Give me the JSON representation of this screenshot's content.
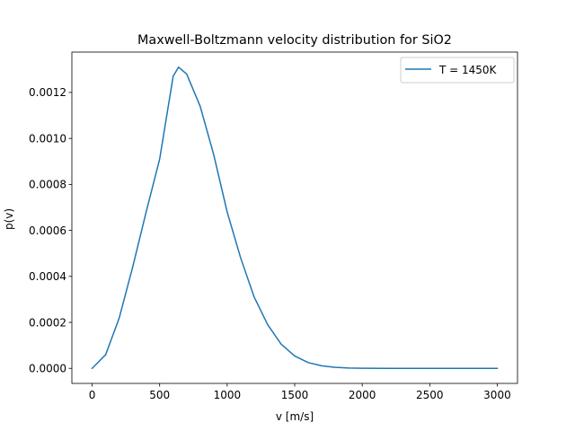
{
  "chart_data": {
    "type": "line",
    "title": "Maxwell-Boltzmann velocity distribution for SiO2",
    "xlabel": "v [m/s]",
    "ylabel": "p(v)",
    "xlim": [
      -150,
      3150
    ],
    "ylim": [
      -6.55e-05,
      0.0013755
    ],
    "x_ticks": [
      0,
      500,
      1000,
      1500,
      2000,
      2500,
      3000
    ],
    "x_tick_labels": [
      "0",
      "500",
      "1000",
      "1500",
      "2000",
      "2500",
      "3000"
    ],
    "y_ticks": [
      0,
      0.0002,
      0.0004,
      0.0006,
      0.0008,
      0.001,
      0.0012
    ],
    "y_tick_labels": [
      "0.0000",
      "0.0002",
      "0.0004",
      "0.0006",
      "0.0008",
      "0.0010",
      "0.0012"
    ],
    "grid": false,
    "legend_position": "top-right",
    "series": [
      {
        "name": "T = 1450K",
        "color": "#1f77b4",
        "x": [
          0,
          100,
          200,
          300,
          400,
          500,
          600,
          640,
          700,
          800,
          900,
          1000,
          1100,
          1200,
          1300,
          1400,
          1500,
          1600,
          1700,
          1800,
          1900,
          2000,
          2200,
          2400,
          2600,
          2800,
          3000
        ],
        "y": [
          0,
          5.92e-05,
          0.000218,
          0.00044,
          0.00068,
          0.00091,
          0.00127,
          0.00131,
          0.00128,
          0.00114,
          0.00093,
          0.00068,
          0.00048,
          0.00031,
          0.00019,
          0.000105,
          5.4e-05,
          2.5e-05,
          1.1e-05,
          4.5e-06,
          1.6e-06,
          6e-07,
          7e-08,
          5e-09,
          0,
          0,
          0
        ]
      }
    ]
  }
}
